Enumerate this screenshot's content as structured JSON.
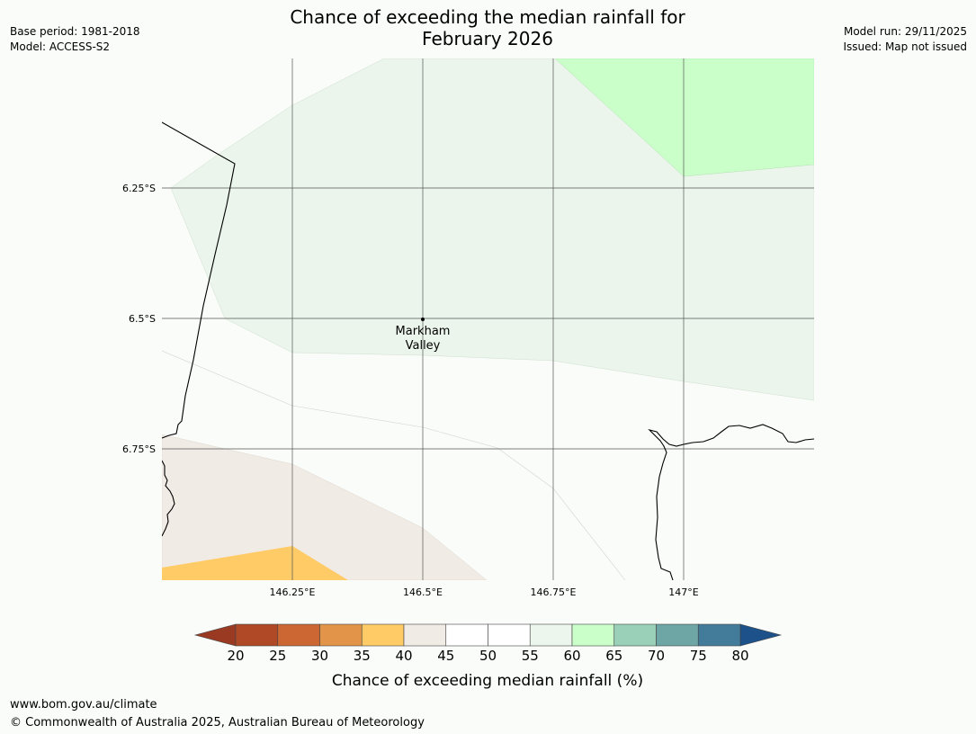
{
  "header": {
    "title_line1": "Chance of exceeding the median rainfall for",
    "title_line2": "February 2026",
    "base_period": "Base period: 1981-2018",
    "model": "Model: ACCESS-S2",
    "model_run": "Model run: 29/11/2025",
    "issued": "Issued: Map not issued"
  },
  "map": {
    "lat_labels": [
      "6.25°S",
      "6.5°S",
      "6.75°S"
    ],
    "lon_labels": [
      "146.25°E",
      "146.5°E",
      "146.75°E",
      "147°E"
    ],
    "place": {
      "name_line1": "Markham",
      "name_line2": "Valley"
    }
  },
  "colorbar": {
    "title": "Chance of exceeding median rainfall (%)",
    "ticks": [
      "20",
      "25",
      "30",
      "35",
      "40",
      "45",
      "50",
      "55",
      "60",
      "65",
      "70",
      "75",
      "80"
    ],
    "colors": [
      "#b04a26",
      "#cc6633",
      "#e29448",
      "#fecb67",
      "#f1ebe5",
      "#ffffff",
      "#ffffff",
      "#ecf6ec",
      "#caffca",
      "#9ad0b8",
      "#6ea6a6",
      "#437b9b"
    ],
    "under_color": "#9a3a22",
    "over_color": "#1d5189"
  },
  "footer": {
    "url": "www.bom.gov.au/climate",
    "copyright": "© Commonwealth of Australia 2025, Australian Bureau of Meteorology"
  }
}
